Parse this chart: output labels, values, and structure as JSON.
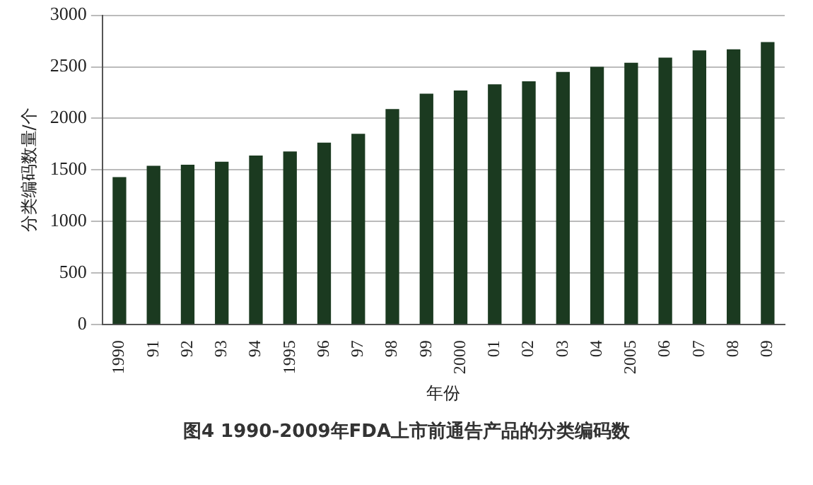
{
  "chart_data": {
    "type": "bar",
    "title": "图4  1990-2009年FDA上市前通告产品的分类编码数",
    "xlabel": "年份",
    "ylabel": "分类编码数量/个",
    "categories": [
      "1990",
      "91",
      "92",
      "93",
      "94",
      "1995",
      "96",
      "97",
      "98",
      "99",
      "2000",
      "01",
      "02",
      "03",
      "04",
      "2005",
      "06",
      "07",
      "08",
      "09"
    ],
    "values": [
      1430,
      1540,
      1550,
      1580,
      1640,
      1680,
      1765,
      1850,
      2090,
      2240,
      2270,
      2330,
      2360,
      2450,
      2500,
      2540,
      2590,
      2660,
      2670,
      2740
    ],
    "color": "#1b3a20",
    "ylim": [
      0,
      3000
    ],
    "yticks": [
      0,
      500,
      1000,
      1500,
      2000,
      2500,
      3000
    ],
    "grid": "y",
    "legend": false
  }
}
